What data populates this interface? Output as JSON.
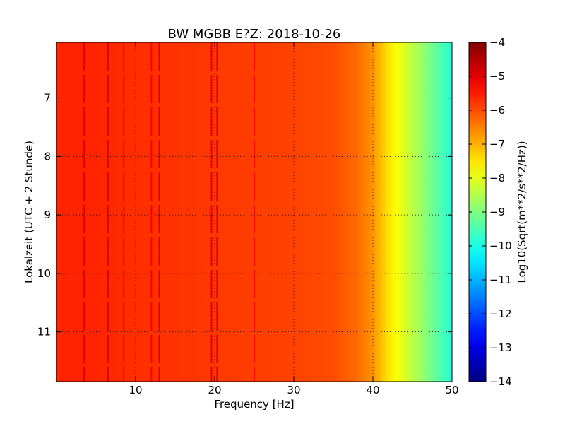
{
  "chart_data": {
    "type": "heatmap",
    "title": "BW MGBB E?Z: 2018-10-26",
    "xlabel": "Frequency [Hz]",
    "ylabel": "Lokalzeit (UTC + 2 Stunde)",
    "xlim": [
      0,
      50
    ],
    "ylim": [
      11.85,
      6.05
    ],
    "y_inverted": true,
    "xticks": [
      10,
      20,
      30,
      40,
      50
    ],
    "yticks": [
      7,
      8,
      9,
      10,
      11
    ],
    "grid": true,
    "colormap": "jet",
    "colorbar": {
      "label": "Log10(Sqrt(m**2/s**2/Hz))",
      "range": [
        -14,
        -4
      ],
      "ticks": [
        -4,
        -5,
        -6,
        -7,
        -8,
        -9,
        -10,
        -11,
        -12,
        -13,
        -14
      ]
    },
    "spectrum_profile": {
      "frequency_hz": [
        0,
        5,
        10,
        15,
        20,
        25,
        30,
        35,
        38,
        40,
        41,
        42,
        43,
        44,
        45,
        46,
        47,
        48,
        49,
        50
      ],
      "log10_amplitude": [
        -5.6,
        -5.6,
        -5.7,
        -5.75,
        -5.8,
        -5.85,
        -5.9,
        -6.0,
        -6.3,
        -6.7,
        -7.1,
        -7.5,
        -7.8,
        -8.1,
        -8.4,
        -8.7,
        -9.0,
        -9.3,
        -9.6,
        -9.9
      ]
    },
    "line_features": [
      {
        "frequency_hz": 3.5,
        "log10_amplitude": -4.9
      },
      {
        "frequency_hz": 6.5,
        "log10_amplitude": -4.9
      },
      {
        "frequency_hz": 8.5,
        "log10_amplitude": -5.2
      },
      {
        "frequency_hz": 12.0,
        "log10_amplitude": -5.2
      },
      {
        "frequency_hz": 13.0,
        "log10_amplitude": -4.9
      },
      {
        "frequency_hz": 19.6,
        "log10_amplitude": -5.0
      },
      {
        "frequency_hz": 20.3,
        "log10_amplitude": -5.0
      },
      {
        "frequency_hz": 25.0,
        "log10_amplitude": -5.3
      }
    ]
  }
}
